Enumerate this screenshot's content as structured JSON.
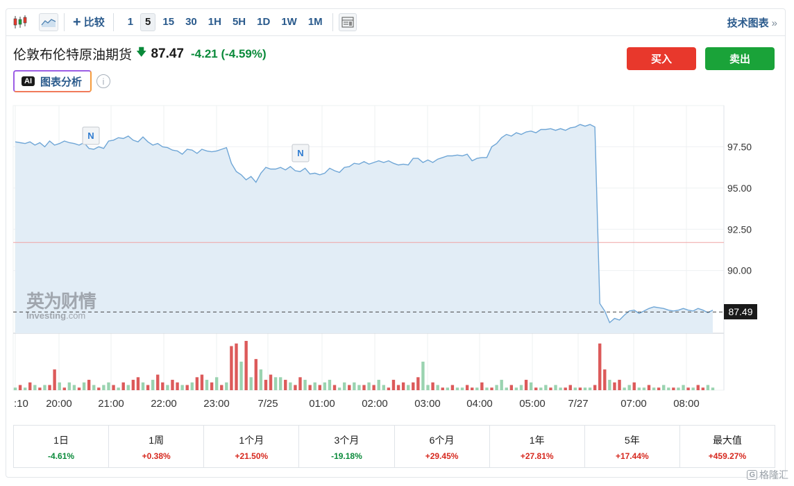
{
  "toolbar": {
    "compare_label": "比较",
    "intervals": [
      "1",
      "5",
      "15",
      "30",
      "1H",
      "5H",
      "1D",
      "1W",
      "1M"
    ],
    "active_interval": "5",
    "tech_chart_label": "技术图表",
    "tech_chart_chevron": "»"
  },
  "header": {
    "instrument_name": "伦敦布伦特原油期货",
    "price": "87.47",
    "change": "-4.21 (-4.59%)",
    "buy_label": "买入",
    "sell_label": "卖出",
    "ai_badge": "AI",
    "ai_label": "图表分析",
    "info_icon": "i"
  },
  "watermark": {
    "cn": "英为财情",
    "en_bold": "Investing",
    "en_suffix": ".com"
  },
  "colors": {
    "line": "#6fa6d6",
    "area": "#e2edf6",
    "up_bar": "#dc5a5a",
    "down_bar": "#9ad3b0",
    "buy": "#e8382c",
    "sell": "#1aa339",
    "ref_line": "#f0a3a3"
  },
  "chart_data": {
    "type": "area",
    "y_ticks": [
      "97.50",
      "95.00",
      "92.50",
      "90.00"
    ],
    "ylim": [
      86.2,
      100.0
    ],
    "last_price_label": "87.49",
    "reference_level": 91.7,
    "x_tick_labels": [
      ":10",
      "20:00",
      "21:00",
      "22:00",
      "23:00",
      "7/25",
      "01:00",
      "02:00",
      "03:00",
      "04:00",
      "05:00",
      "7/27",
      "07:00",
      "08:00"
    ],
    "news_markers": [
      "N",
      "N"
    ],
    "price_series": [
      97.8,
      97.75,
      97.7,
      97.8,
      97.6,
      97.75,
      97.5,
      97.85,
      97.6,
      97.7,
      97.85,
      97.75,
      97.7,
      97.6,
      97.75,
      97.4,
      97.35,
      97.5,
      97.4,
      97.85,
      97.9,
      98.05,
      98.0,
      98.15,
      97.9,
      97.8,
      98.1,
      97.8,
      97.6,
      97.7,
      97.5,
      97.45,
      97.3,
      97.25,
      97.05,
      97.35,
      97.3,
      97.1,
      97.35,
      97.25,
      97.2,
      97.25,
      97.35,
      97.45,
      96.5,
      96.0,
      95.8,
      95.5,
      95.7,
      95.35,
      95.9,
      96.25,
      96.15,
      96.15,
      96.25,
      96.1,
      96.3,
      96.05,
      96.0,
      96.2,
      95.85,
      95.9,
      95.8,
      95.9,
      96.2,
      96.05,
      95.95,
      96.25,
      96.3,
      96.5,
      96.45,
      96.6,
      96.45,
      96.55,
      96.65,
      96.55,
      96.65,
      96.5,
      96.4,
      96.45,
      96.4,
      96.8,
      96.8,
      96.55,
      96.7,
      96.55,
      96.75,
      96.85,
      96.95,
      96.95,
      97.0,
      96.95,
      97.05,
      96.65,
      96.8,
      96.85,
      96.85,
      97.5,
      97.7,
      98.05,
      98.25,
      98.15,
      98.35,
      98.25,
      98.4,
      98.45,
      98.35,
      98.55,
      98.55,
      98.6,
      98.5,
      98.6,
      98.5,
      98.65,
      98.7,
      98.85,
      98.75,
      98.85,
      98.7,
      88.0,
      87.55,
      86.85,
      87.1,
      87.0,
      87.3,
      87.55,
      87.6,
      87.4,
      87.55,
      87.7,
      87.8,
      87.75,
      87.7,
      87.6,
      87.55,
      87.6,
      87.7,
      87.6,
      87.55,
      87.7,
      87.6,
      87.45,
      87.6
    ],
    "volume_series": [
      1,
      2,
      1,
      3,
      2,
      1,
      2,
      2,
      8,
      3,
      1,
      3,
      2,
      1,
      3,
      4,
      2,
      1,
      2,
      3,
      2,
      1,
      3,
      2,
      4,
      5,
      3,
      2,
      4,
      6,
      3,
      2,
      4,
      3,
      2,
      2,
      3,
      5,
      6,
      4,
      3,
      5,
      2,
      3,
      17,
      18,
      11,
      19,
      5,
      12,
      8,
      4,
      6,
      5,
      5,
      4,
      3,
      2,
      5,
      4,
      2,
      3,
      2,
      3,
      4,
      2,
      1,
      3,
      2,
      3,
      2,
      2,
      3,
      2,
      4,
      2,
      1,
      4,
      2,
      3,
      2,
      3,
      5,
      11,
      2,
      3,
      2,
      1,
      1,
      2,
      1,
      1,
      2,
      1,
      1,
      3,
      1,
      1,
      2,
      4,
      1,
      2,
      1,
      2,
      4,
      3,
      1,
      1,
      2,
      1,
      2,
      1,
      1,
      2,
      1,
      1,
      1,
      1,
      2,
      18,
      8,
      4,
      3,
      4,
      1,
      2,
      3,
      1,
      1,
      2,
      1,
      1,
      2,
      1,
      1,
      1,
      2,
      1,
      1,
      2,
      1,
      2,
      1
    ],
    "volume_up": [
      0,
      1,
      0,
      1,
      0,
      1,
      0,
      1,
      1,
      0,
      1,
      0,
      0,
      1,
      0,
      1,
      0,
      1,
      0,
      0,
      1,
      0,
      1,
      0,
      1,
      1,
      0,
      1,
      0,
      1,
      1,
      0,
      1,
      1,
      0,
      1,
      0,
      1,
      1,
      0,
      1,
      0,
      1,
      0,
      1,
      1,
      0,
      1,
      0,
      1,
      0,
      1,
      1,
      0,
      0,
      1,
      0,
      1,
      1,
      0,
      1,
      0,
      1,
      0,
      0,
      1,
      0,
      0,
      1,
      0,
      0,
      1,
      0,
      1,
      0,
      0,
      1,
      1,
      1,
      1,
      0,
      1,
      1,
      0,
      0,
      1,
      0,
      1,
      0,
      1,
      0,
      0,
      1,
      1,
      0,
      1,
      0,
      1,
      0,
      0,
      0,
      1,
      0,
      0,
      1,
      0,
      1,
      0,
      0,
      1,
      0,
      0,
      1,
      1,
      0,
      1,
      0,
      0,
      1,
      1,
      1,
      0,
      1,
      1,
      0,
      0,
      1,
      0,
      0,
      1,
      0,
      1,
      0,
      0,
      1,
      0,
      0,
      1,
      0,
      1,
      1,
      0,
      0
    ]
  },
  "performance": [
    {
      "label": "1日",
      "value": "-4.61%",
      "dir": "neg"
    },
    {
      "label": "1周",
      "value": "+0.38%",
      "dir": "pos"
    },
    {
      "label": "1个月",
      "value": "+21.50%",
      "dir": "pos"
    },
    {
      "label": "3个月",
      "value": "-19.18%",
      "dir": "neg"
    },
    {
      "label": "6个月",
      "value": "+29.45%",
      "dir": "pos"
    },
    {
      "label": "1年",
      "value": "+27.81%",
      "dir": "pos"
    },
    {
      "label": "5年",
      "value": "+17.44%",
      "dir": "pos"
    },
    {
      "label": "最大值",
      "value": "+459.27%",
      "dir": "pos"
    }
  ],
  "corner_logo": {
    "badge": "G",
    "text": "格隆汇"
  }
}
